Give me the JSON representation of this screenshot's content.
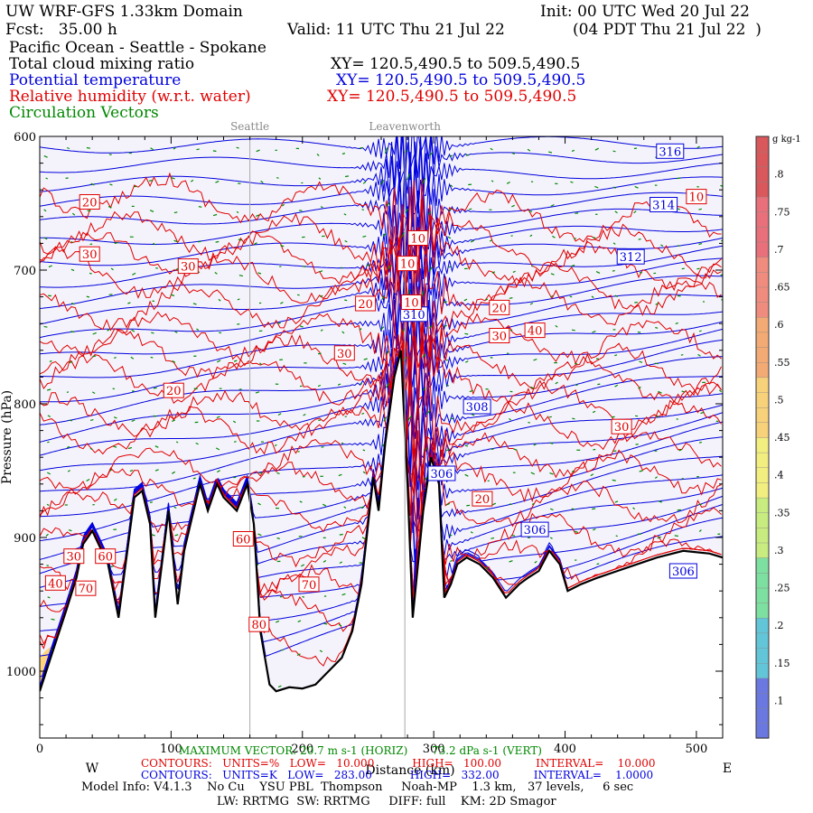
{
  "header": {
    "line1_left": "UW WRF-GFS 1.33km Domain",
    "line1_right": "Init: 00 UTC Wed 20 Jul 22",
    "line2_left": "Fcst:   35.00 h",
    "line2_mid": "Valid: 11 UTC Thu 21 Jul 22",
    "line2_right": "(04 PDT Thu 21 Jul 22  )",
    "line3": "Pacific Ocean - Seattle - Spokane",
    "fields": [
      {
        "label": "Total cloud mixing ratio",
        "xy": "XY= 120.5,490.5 to 509.5,490.5",
        "color": "#000000"
      },
      {
        "label": "Potential temperature",
        "xy": "XY= 120.5,490.5 to 509.5,490.5",
        "color": "#0000dd"
      },
      {
        "label": "Relative humidity (w.r.t. water)",
        "xy": "XY= 120.5,490.5 to 509.5,490.5",
        "color": "#e00000"
      },
      {
        "label": "Circulation Vectors",
        "xy": "",
        "color": "#008800"
      }
    ]
  },
  "chart_data": {
    "type": "cross-section",
    "top_labels": [
      {
        "text": "Seattle",
        "x": 160
      },
      {
        "text": "Leavenworth",
        "x": 278
      }
    ],
    "xlim": [
      0,
      520
    ],
    "xticks": [
      0,
      100,
      200,
      300,
      400,
      500
    ],
    "x_minor_step": 20,
    "xlabel": "Distance (km)",
    "x_end_left": "W",
    "x_end_right": "E",
    "ylim": [
      1050,
      600
    ],
    "yticks": [
      600,
      700,
      800,
      900,
      1000
    ],
    "y_tick_labels": [
      "600",
      "700",
      "800",
      "900",
      "1000"
    ],
    "y_minor_step": 20,
    "ylabel": "Pressure (hPa)",
    "terrain": [
      [
        0,
        1015
      ],
      [
        10,
        985
      ],
      [
        20,
        955
      ],
      [
        28,
        930
      ],
      [
        33,
        905
      ],
      [
        40,
        895
      ],
      [
        52,
        920
      ],
      [
        60,
        960
      ],
      [
        66,
        915
      ],
      [
        72,
        870
      ],
      [
        78,
        865
      ],
      [
        84,
        890
      ],
      [
        88,
        960
      ],
      [
        93,
        920
      ],
      [
        98,
        880
      ],
      [
        105,
        950
      ],
      [
        110,
        910
      ],
      [
        116,
        885
      ],
      [
        122,
        860
      ],
      [
        128,
        880
      ],
      [
        135,
        860
      ],
      [
        140,
        870
      ],
      [
        150,
        880
      ],
      [
        158,
        860
      ],
      [
        163,
        890
      ],
      [
        168,
        970
      ],
      [
        175,
        1010
      ],
      [
        180,
        1015
      ],
      [
        190,
        1012
      ],
      [
        200,
        1013
      ],
      [
        210,
        1010
      ],
      [
        220,
        1000
      ],
      [
        230,
        990
      ],
      [
        238,
        970
      ],
      [
        245,
        935
      ],
      [
        250,
        890
      ],
      [
        254,
        855
      ],
      [
        258,
        880
      ],
      [
        263,
        830
      ],
      [
        270,
        780
      ],
      [
        275,
        760
      ],
      [
        280,
        860
      ],
      [
        284,
        960
      ],
      [
        288,
        920
      ],
      [
        292,
        880
      ],
      [
        298,
        840
      ],
      [
        304,
        860
      ],
      [
        308,
        945
      ],
      [
        313,
        935
      ],
      [
        318,
        920
      ],
      [
        325,
        915
      ],
      [
        335,
        920
      ],
      [
        345,
        930
      ],
      [
        355,
        945
      ],
      [
        365,
        935
      ],
      [
        372,
        930
      ],
      [
        380,
        925
      ],
      [
        388,
        910
      ],
      [
        396,
        920
      ],
      [
        402,
        940
      ],
      [
        412,
        935
      ],
      [
        425,
        930
      ],
      [
        440,
        925
      ],
      [
        455,
        920
      ],
      [
        470,
        915
      ],
      [
        490,
        910
      ],
      [
        510,
        912
      ],
      [
        520,
        915
      ]
    ],
    "theta_contours": [
      {
        "value": 316,
        "p_west": 608,
        "p_east": 604
      },
      {
        "value": 314,
        "p_west": 650,
        "p_east": 653
      },
      {
        "value": 312,
        "p_west": 690,
        "p_east": 700
      },
      {
        "value": 310,
        "p_west": 735,
        "p_east": 760
      },
      {
        "value": 308,
        "p_west": 790,
        "p_east": 850
      },
      {
        "value": 306,
        "p_west": 860,
        "p_east": 895
      }
    ],
    "theta_labels": [
      {
        "text": "316",
        "x": 480,
        "p": 611
      },
      {
        "text": "314",
        "x": 475,
        "p": 651
      },
      {
        "text": "312",
        "x": 450,
        "p": 690
      },
      {
        "text": "310",
        "x": 285,
        "p": 733
      },
      {
        "text": "308",
        "x": 333,
        "p": 802
      },
      {
        "text": "306",
        "x": 306,
        "p": 852
      },
      {
        "text": "306",
        "x": 377,
        "p": 894
      },
      {
        "text": "306",
        "x": 490,
        "p": 925
      }
    ],
    "rh_labels": [
      {
        "text": "20",
        "x": 38,
        "p": 649
      },
      {
        "text": "30",
        "x": 38,
        "p": 688
      },
      {
        "text": "30",
        "x": 113,
        "p": 697
      },
      {
        "text": "20",
        "x": 102,
        "p": 790
      },
      {
        "text": "10",
        "x": 500,
        "p": 645
      },
      {
        "text": "10",
        "x": 288,
        "p": 676
      },
      {
        "text": "10",
        "x": 280,
        "p": 695
      },
      {
        "text": "10",
        "x": 283,
        "p": 724
      },
      {
        "text": "20",
        "x": 248,
        "p": 725
      },
      {
        "text": "30",
        "x": 232,
        "p": 762
      },
      {
        "text": "20",
        "x": 350,
        "p": 728
      },
      {
        "text": "30",
        "x": 350,
        "p": 749
      },
      {
        "text": "40",
        "x": 377,
        "p": 745
      },
      {
        "text": "30",
        "x": 443,
        "p": 817
      },
      {
        "text": "20",
        "x": 337,
        "p": 871
      },
      {
        "text": "60",
        "x": 155,
        "p": 901
      },
      {
        "text": "70",
        "x": 205,
        "p": 935
      },
      {
        "text": "80",
        "x": 167,
        "p": 965
      },
      {
        "text": "30",
        "x": 26,
        "p": 914
      },
      {
        "text": "60",
        "x": 50,
        "p": 914
      },
      {
        "text": "40",
        "x": 12,
        "p": 934
      },
      {
        "text": "70",
        "x": 35,
        "p": 938
      }
    ],
    "colorbar": {
      "unit_label": "g kg-1",
      "ticks": [
        ".1",
        ".15",
        ".2",
        ".25",
        ".3",
        ".35",
        ".4",
        ".45",
        ".5",
        ".55",
        ".6",
        ".65",
        ".7",
        ".75",
        ".8"
      ],
      "tick_values": [
        0.1,
        0.15,
        0.2,
        0.25,
        0.3,
        0.35,
        0.4,
        0.45,
        0.5,
        0.55,
        0.6,
        0.65,
        0.7,
        0.75,
        0.8
      ],
      "range": [
        0.05,
        0.85
      ]
    }
  },
  "footer": {
    "max_vector": "MAXIMUM VECTOR: 20.7 m s-1 (HORIZ)       73.2 dPa s-1 (VERT)",
    "rh_contours": "CONTOURS:   UNITS=%   LOW=   10.000           HIGH=   100.00          INTERVAL=    10.000",
    "theta_contours": "CONTOURS:   UNITS=K   LOW=   283.00           HIGH=   332.00          INTERVAL=    1.0000",
    "model_info": "Model Info: V4.1.3    No Cu    YSU PBL  Thompson     Noah-MP    1.3 km,   37 levels,     6 sec",
    "physics": "LW: RRTMG  SW: RRTMG     DIFF: full    KM: 2D Smagor"
  },
  "colors": {
    "theta": "#0000dd",
    "rh": "#e00000",
    "vectors": "#008800",
    "background": "#f4f3fb",
    "terrain": "#000000"
  }
}
